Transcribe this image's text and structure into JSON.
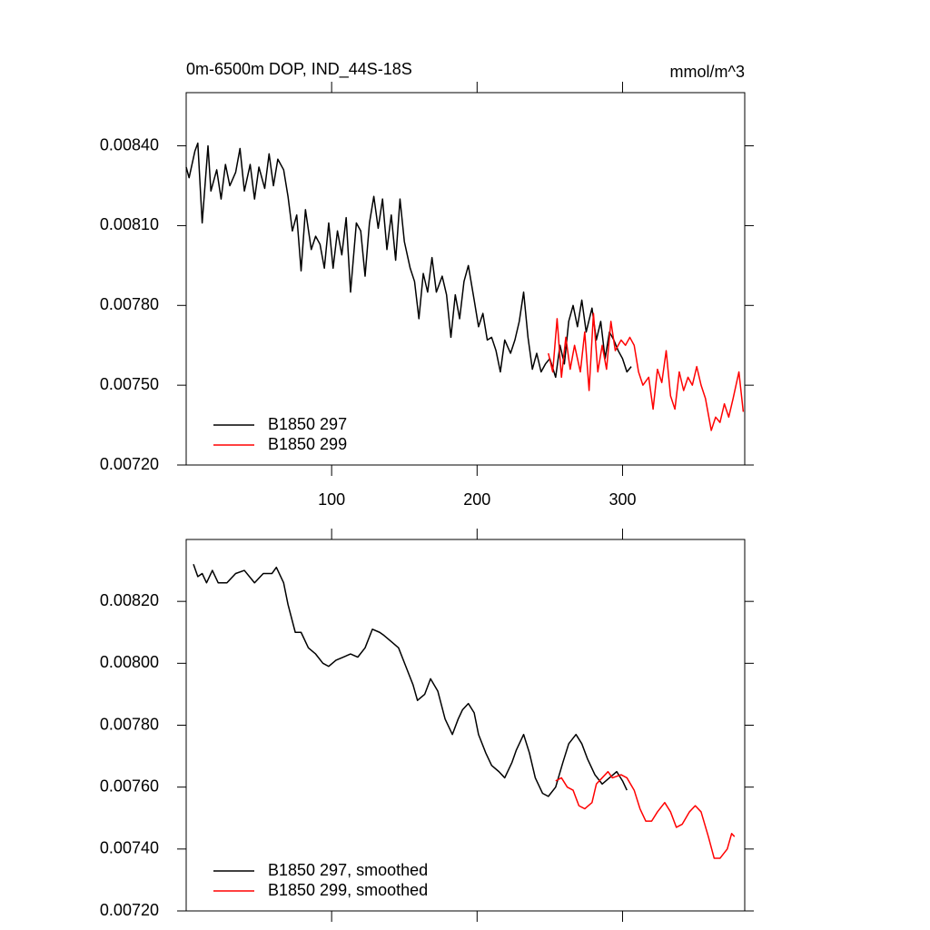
{
  "chart_data": [
    {
      "type": "line",
      "title": "0m-6500m DOP, IND_44S-18S",
      "units": "mmol/m^3",
      "xlim": [
        0,
        384
      ],
      "xticks": [
        100,
        200,
        300
      ],
      "ylim": [
        0.0072,
        0.0086
      ],
      "yticks": [
        {
          "value": 0.0072,
          "label": "0.00720"
        },
        {
          "value": 0.0075,
          "label": "0.00750"
        },
        {
          "value": 0.0078,
          "label": "0.00780"
        },
        {
          "value": 0.0081,
          "label": "0.00810"
        },
        {
          "value": 0.0084,
          "label": "0.00840"
        }
      ],
      "legend": "lower left",
      "series": [
        {
          "name": "B1850 297",
          "color": "#000000",
          "x": [
            0,
            2,
            6,
            8,
            11,
            15,
            17,
            21,
            24,
            27,
            30,
            34,
            37,
            40,
            44,
            47,
            50,
            54,
            57,
            60,
            63,
            67,
            70,
            73,
            76,
            79,
            82,
            86,
            89,
            92,
            95,
            98,
            101,
            104,
            107,
            110,
            113,
            117,
            120,
            123,
            126,
            129,
            132,
            135,
            138,
            141,
            144,
            147,
            150,
            154,
            157,
            160,
            163,
            166,
            169,
            172,
            176,
            179,
            182,
            185,
            188,
            191,
            194,
            198,
            201,
            204,
            207,
            210,
            213,
            216,
            219,
            223,
            226,
            229,
            232,
            235,
            238,
            241,
            244,
            247,
            250,
            254,
            257,
            260,
            263,
            266,
            269,
            272,
            275,
            279,
            282,
            285,
            288,
            291,
            294,
            297,
            300,
            303,
            306
          ],
          "values": [
            0.00832,
            0.00828,
            0.00838,
            0.00841,
            0.00811,
            0.0084,
            0.00823,
            0.00831,
            0.0082,
            0.00833,
            0.00825,
            0.0083,
            0.00839,
            0.00823,
            0.00833,
            0.0082,
            0.00832,
            0.00824,
            0.00837,
            0.00825,
            0.00835,
            0.00831,
            0.00821,
            0.00808,
            0.00814,
            0.00793,
            0.00816,
            0.00801,
            0.00806,
            0.00803,
            0.00794,
            0.00811,
            0.00794,
            0.00808,
            0.00799,
            0.00813,
            0.00785,
            0.00811,
            0.00808,
            0.00791,
            0.00811,
            0.00821,
            0.00809,
            0.0082,
            0.00801,
            0.00814,
            0.00797,
            0.0082,
            0.00804,
            0.00794,
            0.00789,
            0.00775,
            0.00792,
            0.00785,
            0.00798,
            0.00785,
            0.00791,
            0.00784,
            0.00768,
            0.00784,
            0.00775,
            0.00789,
            0.00795,
            0.00782,
            0.00772,
            0.00777,
            0.00767,
            0.00768,
            0.00763,
            0.00755,
            0.00767,
            0.00762,
            0.00767,
            0.00774,
            0.00785,
            0.00768,
            0.00756,
            0.00762,
            0.00755,
            0.00758,
            0.0076,
            0.00753,
            0.00765,
            0.00758,
            0.00774,
            0.0078,
            0.00772,
            0.00782,
            0.0077,
            0.00779,
            0.00767,
            0.00774,
            0.0076,
            0.0077,
            0.00767,
            0.00763,
            0.0076,
            0.00755,
            0.00757
          ]
        },
        {
          "name": "B1850 299",
          "color": "#ff0000",
          "x": [
            249,
            252,
            255,
            258,
            261,
            264,
            267,
            271,
            274,
            277,
            280,
            283,
            286,
            289,
            292,
            295,
            299,
            302,
            305,
            308,
            311,
            314,
            318,
            321,
            324,
            327,
            330,
            333,
            336,
            339,
            342,
            345,
            348,
            351,
            354,
            357,
            361,
            364,
            367,
            370,
            373,
            376,
            380,
            383
          ],
          "values": [
            0.00762,
            0.00755,
            0.00775,
            0.00753,
            0.00768,
            0.00756,
            0.00765,
            0.00755,
            0.0077,
            0.00748,
            0.00777,
            0.00755,
            0.00765,
            0.00756,
            0.00774,
            0.00763,
            0.00767,
            0.00765,
            0.00768,
            0.00765,
            0.00755,
            0.0075,
            0.00753,
            0.00741,
            0.00756,
            0.00751,
            0.00763,
            0.00746,
            0.00741,
            0.00755,
            0.00748,
            0.00753,
            0.0075,
            0.00757,
            0.0075,
            0.00745,
            0.00733,
            0.00738,
            0.00736,
            0.00743,
            0.00738,
            0.00745,
            0.00755,
            0.0074
          ]
        }
      ]
    },
    {
      "type": "line",
      "xlim": [
        0,
        384
      ],
      "xticks": [
        100,
        200,
        300
      ],
      "xtick_labels": false,
      "ylim": [
        0.0072,
        0.0084
      ],
      "yticks": [
        {
          "value": 0.0072,
          "label": "0.00720"
        },
        {
          "value": 0.0074,
          "label": "0.00740"
        },
        {
          "value": 0.0076,
          "label": "0.00760"
        },
        {
          "value": 0.0078,
          "label": "0.00780"
        },
        {
          "value": 0.008,
          "label": "0.00800"
        },
        {
          "value": 0.0082,
          "label": "0.00820"
        }
      ],
      "legend": "lower left",
      "series": [
        {
          "name": "B1850 297, smoothed",
          "color": "#000000",
          "x": [
            5,
            8,
            11,
            14,
            18,
            22,
            28,
            34,
            40,
            47,
            53,
            59,
            62,
            67,
            70,
            75,
            79,
            84,
            89,
            94,
            98,
            103,
            108,
            113,
            118,
            123,
            128,
            133,
            136,
            141,
            146,
            151,
            156,
            159,
            164,
            168,
            173,
            178,
            183,
            187,
            190,
            194,
            198,
            201,
            206,
            210,
            215,
            219,
            224,
            227,
            232,
            236,
            240,
            245,
            249,
            254,
            259,
            263,
            268,
            272,
            276,
            281,
            286,
            291,
            296,
            300,
            303
          ],
          "values": [
            0.00832,
            0.00828,
            0.00829,
            0.00826,
            0.0083,
            0.00826,
            0.00826,
            0.00829,
            0.0083,
            0.00826,
            0.00829,
            0.00829,
            0.00831,
            0.00826,
            0.00819,
            0.0081,
            0.0081,
            0.00805,
            0.00803,
            0.008,
            0.00799,
            0.00801,
            0.00802,
            0.00803,
            0.00802,
            0.00805,
            0.00811,
            0.0081,
            0.00809,
            0.00807,
            0.00805,
            0.00799,
            0.00793,
            0.00788,
            0.0079,
            0.00795,
            0.00791,
            0.00782,
            0.00777,
            0.00782,
            0.00785,
            0.00787,
            0.00784,
            0.00777,
            0.00771,
            0.00767,
            0.00765,
            0.00763,
            0.00768,
            0.00772,
            0.00777,
            0.00771,
            0.00763,
            0.00758,
            0.00757,
            0.0076,
            0.00768,
            0.00774,
            0.00777,
            0.00774,
            0.00769,
            0.00764,
            0.00761,
            0.00763,
            0.00765,
            0.00762,
            0.00759
          ]
        },
        {
          "name": "B1850 299, smoothed",
          "color": "#ff0000",
          "x": [
            254,
            258,
            262,
            266,
            270,
            274,
            279,
            282,
            286,
            290,
            293,
            299,
            303,
            308,
            312,
            316,
            320,
            324,
            329,
            333,
            337,
            341,
            346,
            350,
            354,
            359,
            363,
            367,
            372,
            375,
            377
          ],
          "values": [
            0.00762,
            0.00763,
            0.0076,
            0.00759,
            0.00754,
            0.00753,
            0.00755,
            0.00761,
            0.00763,
            0.00765,
            0.00763,
            0.00764,
            0.00763,
            0.00759,
            0.00753,
            0.00749,
            0.00749,
            0.00752,
            0.00755,
            0.00752,
            0.00747,
            0.00748,
            0.00752,
            0.00754,
            0.00752,
            0.00744,
            0.00737,
            0.00737,
            0.0074,
            0.00745,
            0.00744
          ]
        }
      ]
    }
  ]
}
